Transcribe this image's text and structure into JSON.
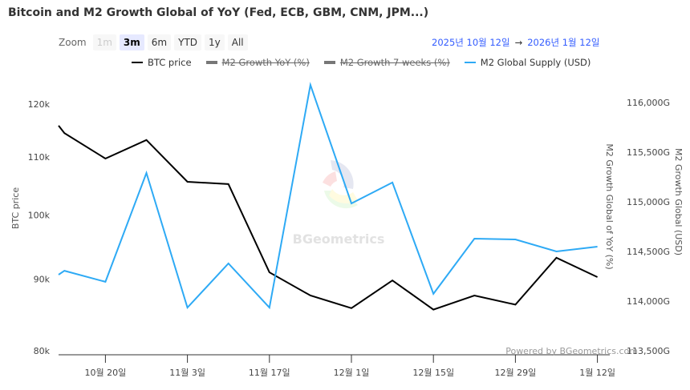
{
  "title": "Bitcoin and M2 Growth Global of YoY (Fed, ECB, GBM, CNM, JPM...)",
  "zoom": {
    "label": "Zoom",
    "buttons": [
      {
        "label": "1m",
        "state": "disabled"
      },
      {
        "label": "3m",
        "state": "active"
      },
      {
        "label": "6m",
        "state": "normal"
      },
      {
        "label": "YTD",
        "state": "normal"
      },
      {
        "label": "1y",
        "state": "normal"
      },
      {
        "label": "All",
        "state": "normal"
      }
    ]
  },
  "range": {
    "from": "2025년 10월 12일",
    "arrow": "→",
    "to": "2026년 1월 12일"
  },
  "legend": [
    {
      "label": "BTC price",
      "color": "#000000",
      "visible": true
    },
    {
      "label": "M2 Growth YoY (%)",
      "color": "#777777",
      "visible": false
    },
    {
      "label": "M2 Growth 7 weeks (%)",
      "color": "#777777",
      "visible": false
    },
    {
      "label": "M2 Global Supply (USD)",
      "color": "#2eaaf5",
      "visible": true
    }
  ],
  "watermark": "BGeometrics",
  "credits": "Powered by BGeometrics.com",
  "chart_data": {
    "type": "line",
    "x_ticks": [
      {
        "date": "2025-10-20",
        "label": "10월 20일"
      },
      {
        "date": "2025-11-03",
        "label": "11월 3일"
      },
      {
        "date": "2025-11-17",
        "label": "11월 17일"
      },
      {
        "date": "2025-12-01",
        "label": "12월 1일"
      },
      {
        "date": "2025-12-15",
        "label": "12월 15일"
      },
      {
        "date": "2025-12-29",
        "label": "12월 29일"
      },
      {
        "date": "2026-01-12",
        "label": "1월 12일"
      }
    ],
    "xlim": [
      "2025-10-12",
      "2026-01-12"
    ],
    "left_axis": {
      "title": "BTC price",
      "scale": "log",
      "ylim": [
        80000,
        120000
      ],
      "ticks": [
        {
          "v": 80000,
          "label": "80k"
        },
        {
          "v": 90000,
          "label": "90k"
        },
        {
          "v": 100000,
          "label": "100k"
        },
        {
          "v": 110000,
          "label": "110k"
        },
        {
          "v": 120000,
          "label": "120k"
        }
      ]
    },
    "middle_axis": {
      "title": "M2 Growth Global of YoY (%)"
    },
    "right_axis": {
      "title": "M2 Growth Global (USD)",
      "scale": "linear",
      "ylim": [
        113500,
        116000
      ],
      "ticks": [
        {
          "v": 113500,
          "label": "113,500G"
        },
        {
          "v": 114000,
          "label": "114,000G"
        },
        {
          "v": 114500,
          "label": "114,500G"
        },
        {
          "v": 115000,
          "label": "115,000G"
        },
        {
          "v": 115500,
          "label": "115,500G"
        },
        {
          "v": 116000,
          "label": "116,000G"
        }
      ]
    },
    "x": [
      "2025-10-12",
      "2025-10-13",
      "2025-10-20",
      "2025-10-27",
      "2025-11-03",
      "2025-11-10",
      "2025-11-17",
      "2025-11-24",
      "2025-12-01",
      "2025-12-08",
      "2025-12-15",
      "2025-12-22",
      "2025-12-29",
      "2026-01-05",
      "2026-01-12"
    ],
    "series": [
      {
        "name": "BTC price",
        "axis": "left",
        "color": "#000000",
        "values": [
          115800,
          114400,
          109700,
          113100,
          105600,
          105200,
          91000,
          87600,
          85800,
          89800,
          85600,
          87600,
          86300,
          93200,
          90300
        ]
      },
      {
        "name": "M2 Global Supply (USD)",
        "axis": "right",
        "color": "#2eaaf5",
        "values": [
          114266,
          114306,
          114194,
          115290,
          113935,
          114379,
          113935,
          116177,
          114984,
          115194,
          114073,
          114629,
          114621,
          114500,
          114548
        ]
      }
    ]
  }
}
